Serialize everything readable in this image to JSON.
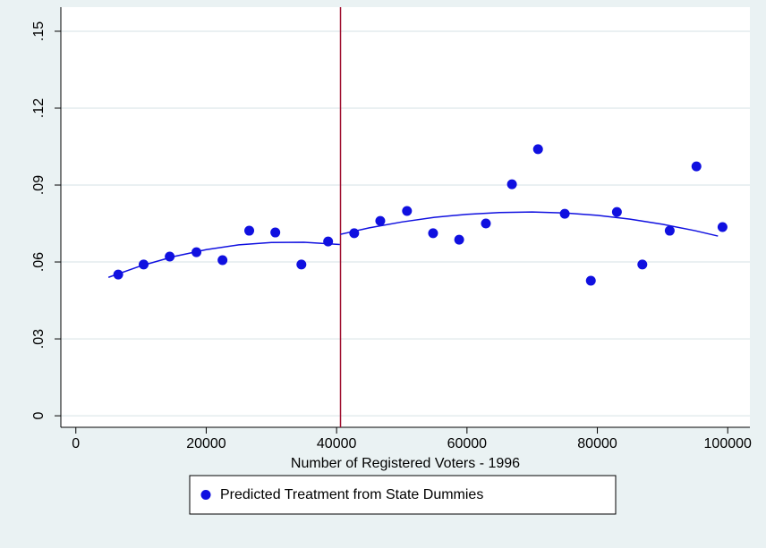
{
  "chart_data": {
    "type": "scatter",
    "x_label": "Number of Registered Voters - 1996",
    "xlim": [
      -2300,
      103400
    ],
    "ylim": [
      -0.0045,
      0.1594
    ],
    "xticks": [
      0,
      20000,
      40000,
      60000,
      80000,
      100000
    ],
    "yticks": [
      0,
      {
        "value": 0.03,
        "label": ".03"
      },
      {
        "value": 0.06,
        "label": ".06"
      },
      {
        "value": 0.09,
        "label": ".09"
      },
      {
        "value": 0.12,
        "label": ".12"
      },
      {
        "value": 0.15,
        "label": ".15"
      }
    ],
    "grid": true,
    "legend": "bottom",
    "series": [
      {
        "name": "Predicted Treatment from State Dummies",
        "color": "#1010e0",
        "x": [
          6500,
          10400,
          14400,
          18500,
          22500,
          26600,
          30600,
          34600,
          38700,
          42700,
          46700,
          50800,
          54800,
          58800,
          62900,
          66900,
          70900,
          75000,
          79000,
          83000,
          86900,
          91100,
          95200,
          99200
        ],
        "values": [
          0.0551,
          0.059,
          0.0621,
          0.0638,
          0.0607,
          0.0722,
          0.0715,
          0.059,
          0.068,
          0.0712,
          0.076,
          0.0799,
          0.0712,
          0.0687,
          0.075,
          0.0903,
          0.104,
          0.0788,
          0.0527,
          0.0795,
          0.059,
          0.0722,
          0.0973,
          0.0736
        ]
      }
    ],
    "fits": [
      {
        "color": "#1010e0",
        "x": [
          5000,
          10000,
          15000,
          20000,
          25000,
          30000,
          35000,
          40500
        ],
        "values": [
          0.054,
          0.0585,
          0.0621,
          0.0648,
          0.0667,
          0.0676,
          0.0677,
          0.0668
        ]
      },
      {
        "color": "#1010e0",
        "x": [
          40600,
          45000,
          50000,
          55000,
          60000,
          65000,
          70000,
          75000,
          80000,
          85000,
          90000,
          95000,
          98500
        ],
        "values": [
          0.0708,
          0.0733,
          0.0756,
          0.0774,
          0.0786,
          0.0793,
          0.0795,
          0.0791,
          0.0782,
          0.0767,
          0.0747,
          0.0722,
          0.0701
        ]
      }
    ],
    "vline": {
      "x": 40600,
      "color": "#a01030"
    }
  }
}
